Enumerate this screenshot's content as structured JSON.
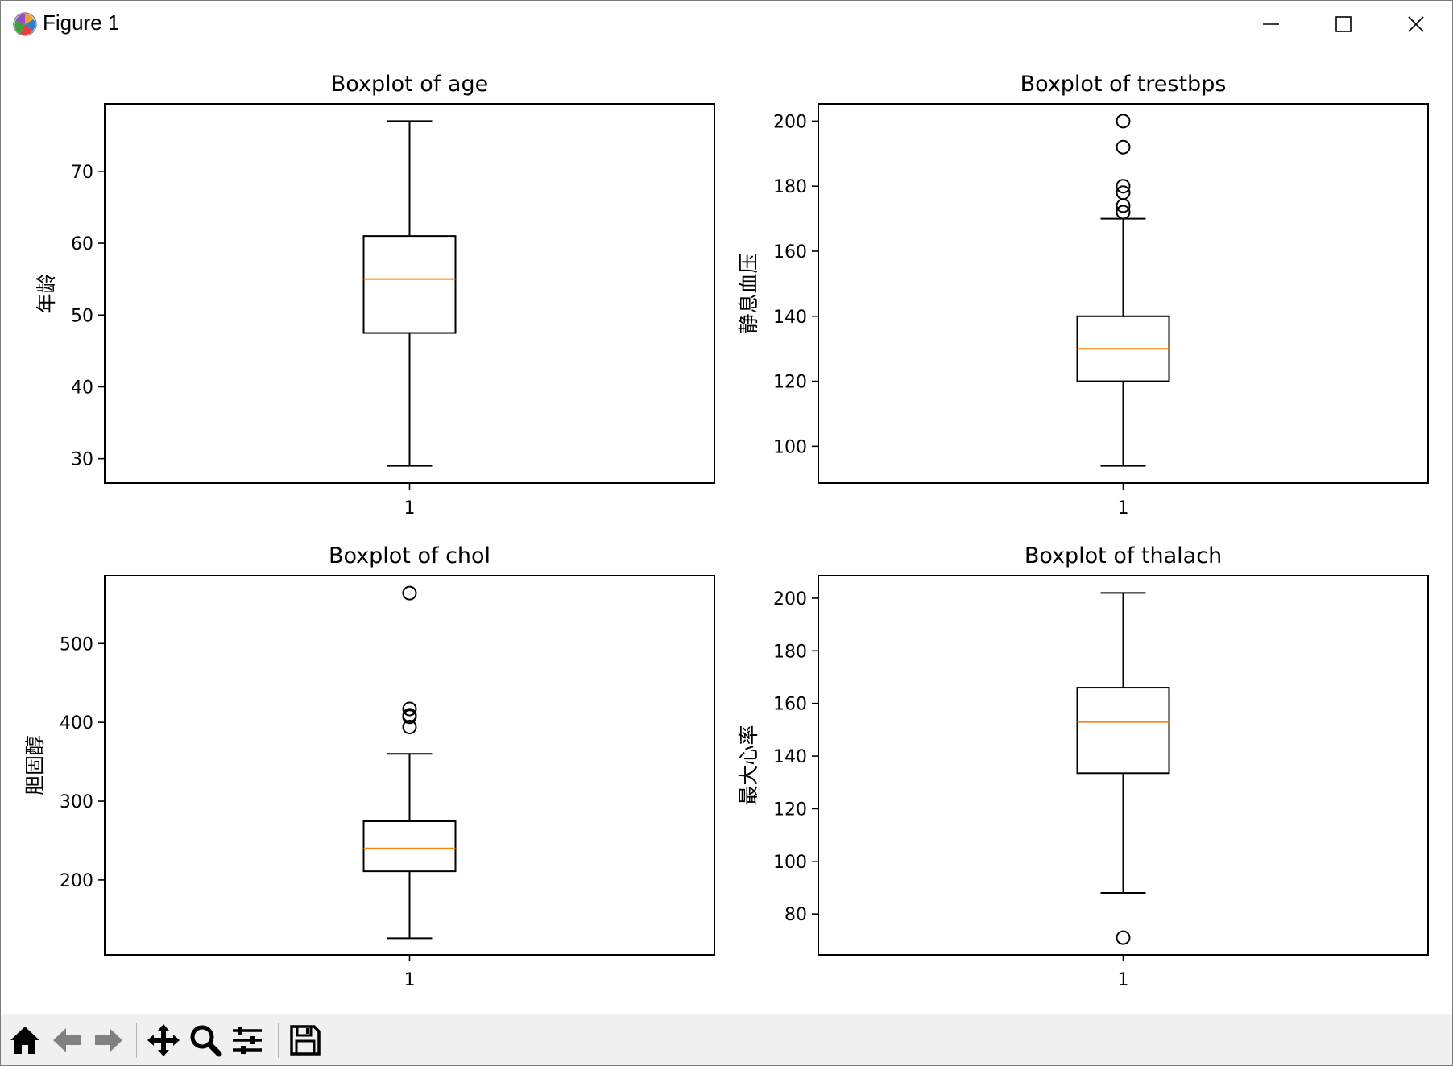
{
  "window": {
    "title": "Figure 1"
  },
  "toolbar": {
    "buttons": [
      {
        "name": "home",
        "icon": "home-icon"
      },
      {
        "name": "back",
        "icon": "arrow-left-icon"
      },
      {
        "name": "forward",
        "icon": "arrow-right-icon"
      },
      {
        "name": "pan",
        "icon": "move-icon"
      },
      {
        "name": "zoom",
        "icon": "magnifier-icon"
      },
      {
        "name": "configure",
        "icon": "sliders-icon"
      },
      {
        "name": "save",
        "icon": "floppy-disk-icon"
      }
    ]
  },
  "colors": {
    "median": "#ff7f0e",
    "box": "#000000",
    "background": "#ffffff"
  },
  "chart_data": [
    {
      "type": "boxplot",
      "title": "Boxplot of age",
      "ylabel": "年龄",
      "xticks": [
        "1"
      ],
      "yticks": [
        30,
        40,
        50,
        60,
        70
      ],
      "ylim": [
        26.6,
        79.4
      ],
      "box": {
        "whisker_low": 29,
        "q1": 47.5,
        "median": 55,
        "q3": 61,
        "whisker_high": 77
      },
      "outliers": []
    },
    {
      "type": "boxplot",
      "title": "Boxplot of trestbps",
      "ylabel": "静息血压",
      "xticks": [
        "1"
      ],
      "yticks": [
        100,
        120,
        140,
        160,
        180,
        200
      ],
      "ylim": [
        88.7,
        205.3
      ],
      "box": {
        "whisker_low": 94,
        "q1": 120,
        "median": 130,
        "q3": 140,
        "whisker_high": 170
      },
      "outliers": [
        200,
        192,
        180,
        178,
        174,
        172
      ]
    },
    {
      "type": "boxplot",
      "title": "Boxplot of chol",
      "ylabel": "胆固醇",
      "xticks": [
        "1"
      ],
      "yticks": [
        200,
        300,
        400,
        500
      ],
      "ylim": [
        104.9,
        586.1
      ],
      "box": {
        "whisker_low": 126,
        "q1": 211,
        "median": 240,
        "q3": 274.5,
        "whisker_high": 360
      },
      "outliers": [
        564,
        417,
        409,
        407,
        394
      ]
    },
    {
      "type": "boxplot",
      "title": "Boxplot of thalach",
      "ylabel": "最大心率",
      "xticks": [
        "1"
      ],
      "yticks": [
        80,
        100,
        120,
        140,
        160,
        180,
        200
      ],
      "ylim": [
        64.45,
        208.55
      ],
      "box": {
        "whisker_low": 88,
        "q1": 133.5,
        "median": 153,
        "q3": 166,
        "whisker_high": 202
      },
      "outliers": [
        71
      ]
    }
  ]
}
